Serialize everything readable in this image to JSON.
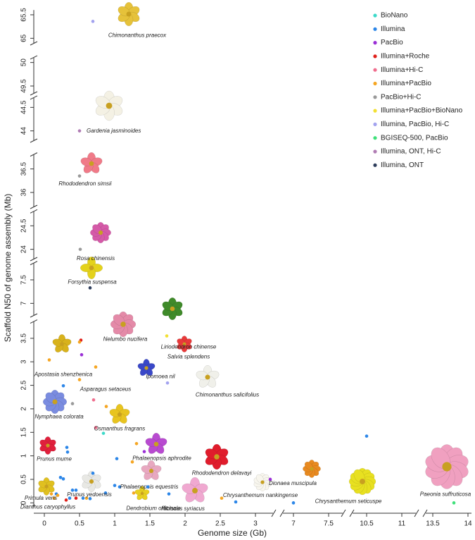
{
  "chart_data": {
    "type": "scatter",
    "xlabel": "Genome size (Gb)",
    "ylabel": "Scaffold N50 of genome assembly (Mb)",
    "legend": "top-right",
    "x_axis_segments": [
      {
        "xlim": [
          -0.15,
          3.25
        ],
        "xticks": [
          0,
          0.5,
          1,
          1.5,
          2,
          2.5,
          3
        ]
      },
      {
        "xlim": [
          6.85,
          7.7
        ],
        "xticks": [
          7,
          7.5
        ]
      },
      {
        "xlim": [
          10.3,
          11.2
        ],
        "xticks": [
          10.5,
          11
        ]
      },
      {
        "xlim": [
          13.4,
          14.05
        ],
        "xticks": [
          13.5,
          14
        ]
      }
    ],
    "y_axis_segments": [
      {
        "ylim": [
          -0.1,
          3.85
        ],
        "yticks": [
          0,
          0.5,
          1,
          1.5,
          2,
          2.5,
          3,
          3.5
        ]
      },
      {
        "ylim": [
          6.75,
          7.85
        ],
        "yticks": [
          7,
          7.5
        ]
      },
      {
        "ylim": [
          23.8,
          24.8
        ],
        "yticks": [
          24,
          24.5
        ]
      },
      {
        "ylim": [
          35.7,
          36.8
        ],
        "yticks": [
          36,
          36.5
        ]
      },
      {
        "ylim": [
          43.8,
          44.7
        ],
        "yticks": [
          44,
          44.5
        ]
      },
      {
        "ylim": [
          49.35,
          50.1
        ],
        "yticks": [
          49.5,
          50
        ]
      },
      {
        "ylim": [
          64.9,
          65.6
        ],
        "yticks": [
          65,
          65.5
        ]
      }
    ],
    "series": [
      {
        "name": "BioNano",
        "color": "#3dd9c9",
        "x": [
          0.84
        ],
        "values": [
          1.48
        ],
        "labels": [
          null
        ]
      },
      {
        "name": "Illumina",
        "color": "#2c86e8",
        "x": [
          0.32,
          1.03,
          0.69,
          1.07,
          1.77,
          7.0,
          10.5,
          0.27,
          0.33,
          0.23,
          0.27,
          0.4,
          0.45,
          0.17,
          0.36,
          0.55,
          0.65,
          1.0,
          1.47,
          0.87,
          2.72
        ],
        "values": [
          1.18,
          0.94,
          0.63,
          0.34,
          0.19,
          0.0,
          1.42,
          2.49,
          1.08,
          0.54,
          0.51,
          0.27,
          0.27,
          0.19,
          0.1,
          0.1,
          0.09,
          0.37,
          0.34,
          0.21,
          0.02
        ],
        "labels": [
          "Prunus mume",
          "Phalaenopsis aphrodite",
          "Rhododendron delavayi",
          "Phalaenopsis equestris",
          "Hibiscus syriacus",
          "Chrysanthemum seticuspe",
          null,
          null,
          null,
          null,
          null,
          null,
          null,
          null,
          null,
          null,
          null,
          null,
          null,
          null,
          null
        ]
      },
      {
        "name": "PacBio",
        "color": "#9a2fd6",
        "x": [
          0.53,
          3.21,
          1.42
        ],
        "values": [
          3.15,
          0.5,
          1.09
        ],
        "labels": [
          "Salvia splendens",
          "Dionaea muscipula",
          null
        ]
      },
      {
        "name": "Illumina+Roche",
        "color": "#e0201a",
        "x": [
          0.52,
          0.31,
          0.45
        ],
        "values": [
          3.46,
          0.06,
          0.1
        ],
        "labels": [
          "Nelumbo nucifera",
          "Dianthus caryophyllus",
          null
        ]
      },
      {
        "name": "Illumina+Hi-C",
        "color": "#f06e8e",
        "x": [
          0.73,
          0.7
        ],
        "values": [
          1.6,
          2.19
        ],
        "labels": [
          "Osmanthus fragrans",
          "Asparagus setaceus"
        ]
      },
      {
        "name": "Illumina+PacBio",
        "color": "#f5a623",
        "x": [
          0.07,
          0.73,
          0.6,
          0.14,
          1.27,
          2.52,
          0.5,
          0.5,
          0.88,
          1.31,
          1.25,
          0.1,
          0.19
        ],
        "values": [
          3.04,
          2.89,
          0.1,
          0.1,
          0.21,
          0.1,
          3.42,
          2.62,
          2.05,
          1.26,
          0.87,
          0.19,
          0.16
        ],
        "labels": [
          "Apostasia shenzhenica",
          "Ipomoea nil",
          "Prunus yedoensis",
          "Primula veris",
          "Dendrobium officinale",
          "Chrysanthemum nankingense",
          null,
          null,
          null,
          null,
          null,
          null,
          null
        ]
      },
      {
        "name": " PacBio+Hi-C",
        "color": "#9a9a9a",
        "x": [
          0.5,
          0.51,
          0.4
        ],
        "values": [
          36.35,
          24.0,
          2.11
        ],
        "labels": [
          "Rhododendron simsii",
          "Rosa chinensis",
          "Nymphaea colorata"
        ]
      },
      {
        "name": "Illumina+PacBio+BioNano",
        "color": "#f2e033",
        "x": [
          1.74
        ],
        "values": [
          3.55
        ],
        "labels": [
          "Liriodendron chinense"
        ]
      },
      {
        "name": "Illumina, PacBio, Hi-C",
        "color": "#a3a3ef",
        "x": [
          0.69,
          1.75
        ],
        "values": [
          65.36,
          2.55
        ],
        "labels": [
          "Chimonanthus praecox",
          "Chimonanthus salicifolius"
        ]
      },
      {
        "name": "BGISEQ-500, PacBio",
        "color": "#3fe07a",
        "x": [
          13.8
        ],
        "values": [
          0.0
        ],
        "labels": [
          "Paeonia suffruticosa"
        ]
      },
      {
        "name": "Illumina, ONT, Hi-C",
        "color": "#b07cb4",
        "x": [
          0.5
        ],
        "values": [
          44.0
        ],
        "labels": [
          "Gardenia jasminoides"
        ]
      },
      {
        "name": "Illumina, ONT",
        "color": "#2f3e5c",
        "x": [
          0.65
        ],
        "values": [
          7.33
        ],
        "labels": [
          "Forsythia suspensa"
        ]
      }
    ]
  }
}
